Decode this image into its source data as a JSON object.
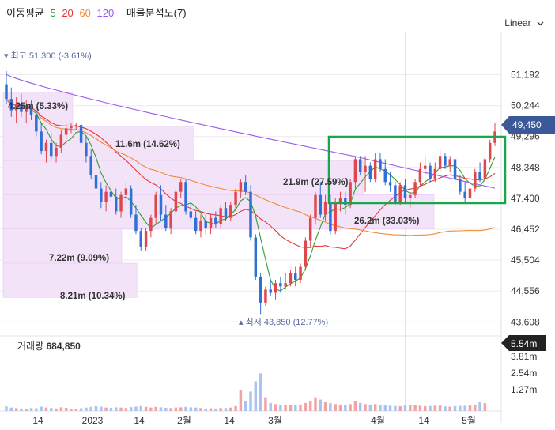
{
  "legend": {
    "title": "이동평균",
    "ma_labels": [
      {
        "text": "5",
        "color": "#2ca02c"
      },
      {
        "text": "20",
        "color": "#e53935"
      },
      {
        "text": "60",
        "color": "#f08c3a"
      },
      {
        "text": "120",
        "color": "#9b59f0"
      }
    ],
    "profile_label": "매물분석도(7)"
  },
  "scale_toggle": "Linear",
  "colors": {
    "up": "#e0474c",
    "down": "#2f6fd6",
    "vol_up": "#f1a3a6",
    "vol_down": "#a9c4ef",
    "badge_price": "#3b5998",
    "badge_vol": "#222222",
    "highlight_box": "#1aa64a",
    "profile_fill": "#f3e3f8"
  },
  "chart_data": {
    "type": "candlestick",
    "y_ticks": [
      "51,192",
      "50,244",
      "49,296",
      "48,348",
      "47,400",
      "46,452",
      "45,504",
      "44,556",
      "43,608"
    ],
    "ylim": [
      43300,
      52150
    ],
    "x_ticks": [
      "14",
      "2023",
      "14",
      "2월",
      "14",
      "3월",
      "4월",
      "14",
      "5월"
    ],
    "current_price": "49,450",
    "current_volume": "5.54m",
    "volume_label": "거래량",
    "volume_value": "684,850",
    "volume_ticks": [
      "3.81m",
      "2.54m",
      "1.27m"
    ],
    "volume_max": 5540000,
    "high_label": "최고 51,300 (-3.61%)",
    "low_label": "최저 43,850 (12.77%)",
    "volume_profile": [
      {
        "label": "4.25m (5.33%)",
        "low": 49610,
        "high": 50650,
        "share": 5.33
      },
      {
        "label": "11.6m (14.62%)",
        "low": 48560,
        "high": 49610,
        "share": 14.62
      },
      {
        "label": "21.9m (27.59%)",
        "low": 47510,
        "high": 48560,
        "share": 27.59
      },
      {
        "label": "26.2m (33.03%)",
        "low": 46460,
        "high": 47510,
        "share": 33.03
      },
      {
        "label": "7.22m (9.09%)",
        "low": 45410,
        "high": 46460,
        "share": 9.09
      },
      {
        "label": "8.21m (10.34%)",
        "low": 44360,
        "high": 45410,
        "share": 10.34
      }
    ],
    "candles_ohlc": [
      [
        50900,
        51300,
        50300,
        50450
      ],
      [
        50450,
        50800,
        49900,
        50100
      ],
      [
        50100,
        50500,
        49700,
        50300
      ],
      [
        50300,
        50600,
        49900,
        50050
      ],
      [
        50050,
        50400,
        49700,
        50250
      ],
      [
        50250,
        50400,
        49800,
        49950
      ],
      [
        49950,
        50200,
        49300,
        49450
      ],
      [
        49450,
        49700,
        48750,
        48850
      ],
      [
        48850,
        49200,
        48500,
        49100
      ],
      [
        49100,
        49400,
        48600,
        48700
      ],
      [
        48700,
        49100,
        48500,
        48950
      ],
      [
        48950,
        49500,
        48800,
        49350
      ],
      [
        49350,
        49700,
        49100,
        49550
      ],
      [
        49550,
        49700,
        49400,
        49600
      ],
      [
        49600,
        49700,
        49500,
        49650
      ],
      [
        49650,
        49700,
        49000,
        49100
      ],
      [
        49100,
        49300,
        48500,
        48700
      ],
      [
        48700,
        48900,
        48000,
        48100
      ],
      [
        48100,
        48300,
        47600,
        47700
      ],
      [
        47700,
        47900,
        47100,
        47300
      ],
      [
        47300,
        47800,
        47000,
        47600
      ],
      [
        47600,
        47900,
        47300,
        47450
      ],
      [
        47450,
        47700,
        46900,
        47000
      ],
      [
        47000,
        47600,
        46800,
        47500
      ],
      [
        47500,
        47900,
        47200,
        47700
      ],
      [
        47700,
        47800,
        46800,
        46900
      ],
      [
        46900,
        47200,
        46300,
        46400
      ],
      [
        46400,
        46500,
        45800,
        45900
      ],
      [
        45900,
        46500,
        45800,
        46400
      ],
      [
        46400,
        46900,
        46200,
        46800
      ],
      [
        46800,
        47600,
        46600,
        47500
      ],
      [
        47500,
        47800,
        46700,
        46900
      ],
      [
        46900,
        47200,
        46400,
        46500
      ],
      [
        46500,
        47100,
        46300,
        47000
      ],
      [
        47000,
        47700,
        46800,
        47600
      ],
      [
        47600,
        48000,
        47400,
        47900
      ],
      [
        47900,
        48000,
        46900,
        47000
      ],
      [
        47000,
        47300,
        46700,
        46800
      ],
      [
        46800,
        47000,
        46300,
        46400
      ],
      [
        46400,
        46900,
        46200,
        46700
      ],
      [
        46700,
        46900,
        46300,
        46500
      ],
      [
        46500,
        46900,
        46300,
        46800
      ],
      [
        46800,
        47000,
        46500,
        46600
      ],
      [
        46600,
        47200,
        46500,
        47100
      ],
      [
        47100,
        47300,
        46700,
        46800
      ],
      [
        46800,
        47300,
        46700,
        47200
      ],
      [
        47200,
        47700,
        47000,
        47600
      ],
      [
        47600,
        48000,
        47400,
        47900
      ],
      [
        47900,
        48100,
        47500,
        47600
      ],
      [
        47600,
        47800,
        46100,
        46200
      ],
      [
        46200,
        46300,
        44900,
        45000
      ],
      [
        45000,
        45100,
        43850,
        44200
      ],
      [
        44200,
        44700,
        44100,
        44600
      ],
      [
        44600,
        44900,
        44400,
        44500
      ],
      [
        44500,
        44900,
        44300,
        44800
      ],
      [
        44800,
        45000,
        44500,
        44700
      ],
      [
        44700,
        45100,
        44600,
        44800
      ],
      [
        44800,
        45200,
        44700,
        45100
      ],
      [
        45100,
        45300,
        44700,
        44900
      ],
      [
        44900,
        45400,
        44800,
        45300
      ],
      [
        45300,
        46200,
        45200,
        46100
      ],
      [
        46100,
        46900,
        45900,
        46800
      ],
      [
        46800,
        47600,
        46600,
        47500
      ],
      [
        47500,
        47900,
        46800,
        46900
      ],
      [
        46900,
        47500,
        46700,
        47300
      ],
      [
        47300,
        47500,
        46300,
        46400
      ],
      [
        46400,
        47400,
        46300,
        47300
      ],
      [
        47300,
        47600,
        47000,
        47400
      ],
      [
        47400,
        47600,
        46900,
        47200
      ],
      [
        47200,
        48000,
        47100,
        47900
      ],
      [
        47900,
        48700,
        47700,
        48600
      ],
      [
        48600,
        48700,
        48100,
        48200
      ],
      [
        48200,
        48700,
        47600,
        48400
      ],
      [
        48400,
        48500,
        47900,
        48000
      ],
      [
        48000,
        48800,
        47900,
        48600
      ],
      [
        48600,
        48800,
        48200,
        48300
      ],
      [
        48300,
        48600,
        47800,
        47900
      ],
      [
        47900,
        48200,
        47600,
        47800
      ],
      [
        47800,
        47900,
        47200,
        47300
      ],
      [
        47300,
        47900,
        47200,
        47800
      ],
      [
        47800,
        48000,
        47300,
        47400
      ],
      [
        47400,
        47600,
        47100,
        47500
      ],
      [
        47500,
        48000,
        47400,
        47900
      ],
      [
        47900,
        48500,
        47800,
        48300
      ],
      [
        48300,
        48700,
        48100,
        48400
      ],
      [
        48400,
        48500,
        47900,
        48000
      ],
      [
        48000,
        48500,
        47900,
        48300
      ],
      [
        48300,
        48900,
        48200,
        48700
      ],
      [
        48700,
        48800,
        48300,
        48400
      ],
      [
        48400,
        48700,
        48200,
        48600
      ],
      [
        48600,
        48700,
        47900,
        48000
      ],
      [
        48000,
        48100,
        47500,
        47600
      ],
      [
        47600,
        47900,
        47300,
        47400
      ],
      [
        47400,
        47800,
        47300,
        47700
      ],
      [
        47700,
        48300,
        47600,
        48200
      ],
      [
        48200,
        48500,
        47900,
        48000
      ],
      [
        48000,
        48700,
        47900,
        48600
      ],
      [
        48600,
        49200,
        48500,
        49100
      ],
      [
        49100,
        49700,
        49000,
        49450
      ]
    ],
    "volumes": [
      400000,
      300000,
      250000,
      220000,
      200000,
      260000,
      240000,
      380000,
      300000,
      260000,
      220000,
      320000,
      280000,
      200000,
      180000,
      240000,
      300000,
      360000,
      420000,
      380000,
      300000,
      280000,
      320000,
      300000,
      260000,
      340000,
      380000,
      420000,
      360000,
      300000,
      360000,
      320000,
      280000,
      260000,
      300000,
      320000,
      360000,
      320000,
      300000,
      260000,
      220000,
      240000,
      220000,
      260000,
      260000,
      300000,
      420000,
      1800000,
      900000,
      1700000,
      2600000,
      3300000,
      1200000,
      700000,
      600000,
      500000,
      480000,
      500000,
      520000,
      560000,
      700000,
      900000,
      1200000,
      1000000,
      760000,
      680000,
      600000,
      560000,
      540000,
      600000,
      900000,
      700000,
      600000,
      560000,
      600000,
      520000,
      480000,
      460000,
      440000,
      420000,
      480000,
      520000,
      500000,
      460000,
      420000,
      440000,
      460000,
      480000,
      400000,
      380000,
      420000,
      440000,
      460000,
      500000,
      560000,
      800000,
      684850
    ]
  }
}
